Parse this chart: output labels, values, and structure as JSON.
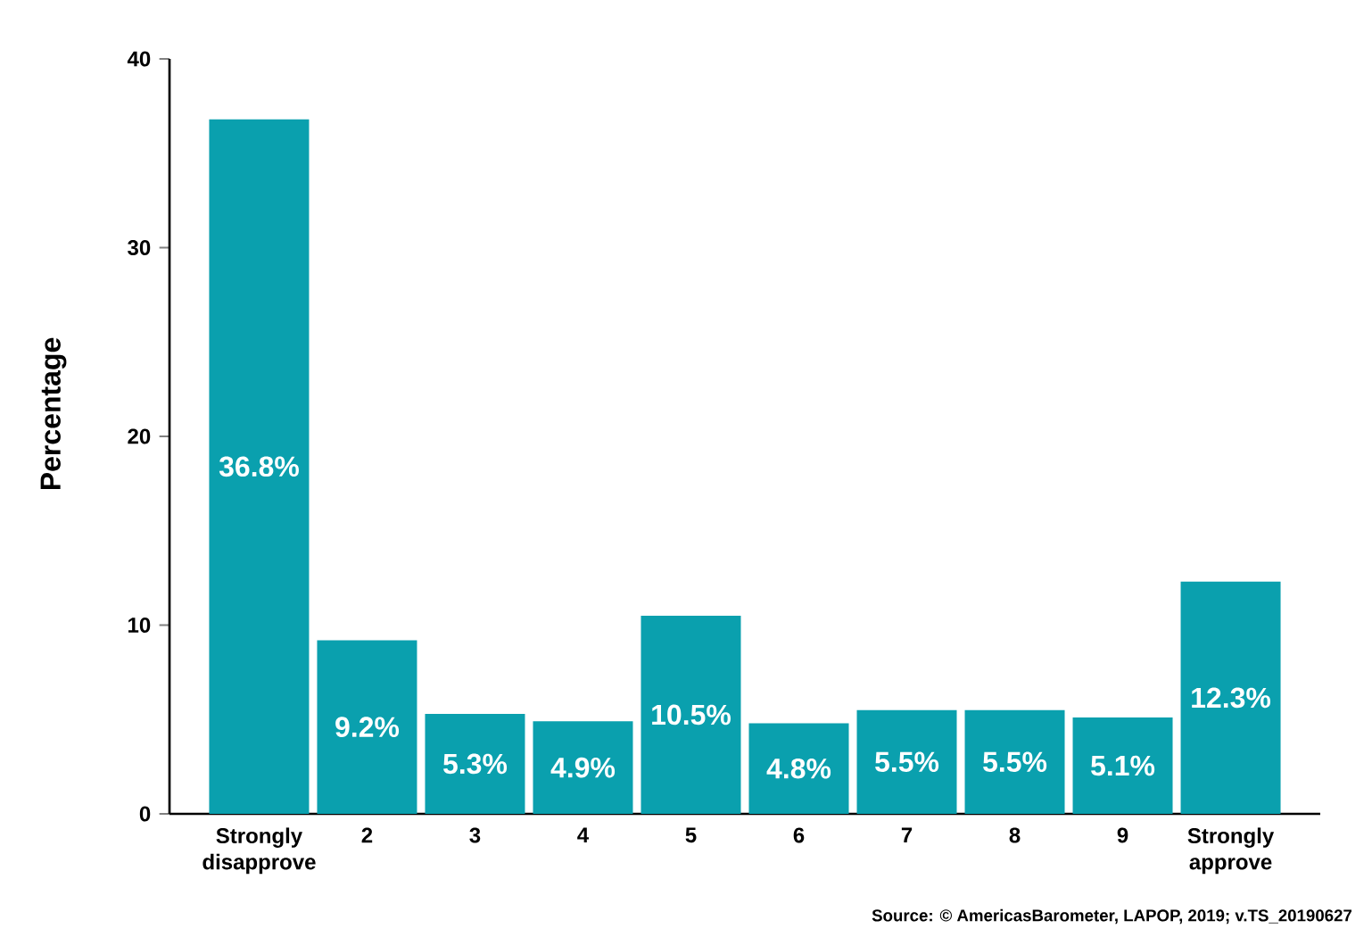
{
  "chart_data": {
    "type": "bar",
    "ylabel": "Percentage",
    "categories": [
      "Strongly disapprove",
      "2",
      "3",
      "4",
      "5",
      "6",
      "7",
      "8",
      "9",
      "Strongly approve"
    ],
    "values": [
      36.8,
      9.2,
      5.3,
      4.9,
      10.5,
      4.8,
      5.5,
      5.5,
      5.1,
      12.3
    ],
    "value_labels": [
      "36.8%",
      "9.2%",
      "5.3%",
      "4.9%",
      "10.5%",
      "4.8%",
      "5.5%",
      "5.5%",
      "5.1%",
      "12.3%"
    ],
    "color": "#0aa0ae",
    "ylim": [
      0,
      40
    ],
    "yticks": [
      0,
      10,
      20,
      30,
      40
    ],
    "grid": false,
    "annotations": [
      "Source: © AmericasBarometer, LAPOP, 2019; v.TS_20190627"
    ]
  }
}
